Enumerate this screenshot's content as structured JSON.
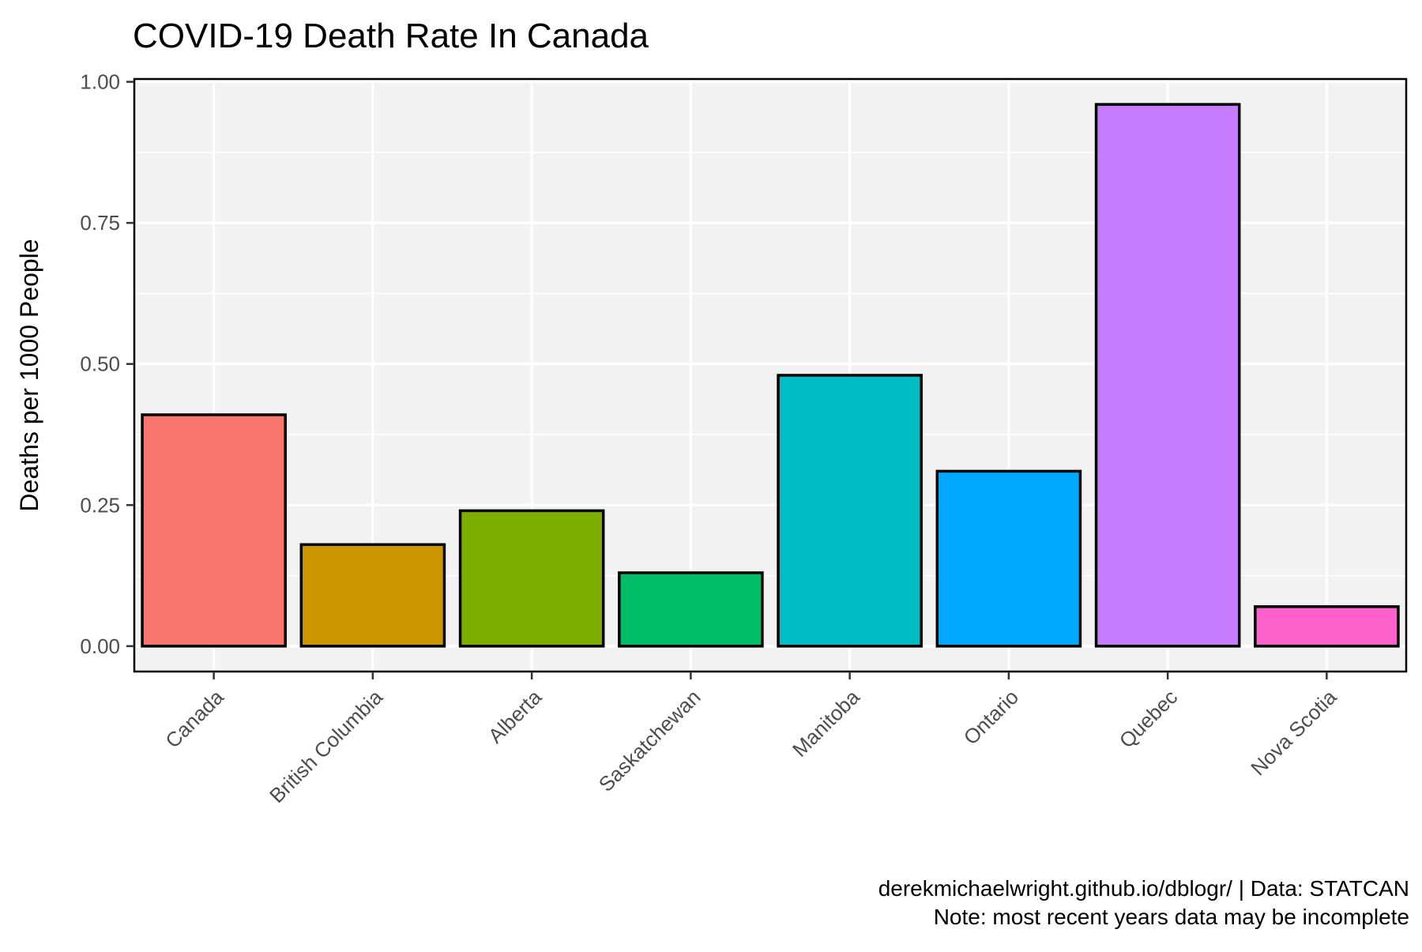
{
  "chart_data": {
    "type": "bar",
    "title": "COVID-19 Death Rate In Canada",
    "xlabel": "",
    "ylabel": "Deaths per 1000 People",
    "categories": [
      "Canada",
      "British Columbia",
      "Alberta",
      "Saskatchewan",
      "Manitoba",
      "Ontario",
      "Quebec",
      "Nova Scotia"
    ],
    "values": [
      0.41,
      0.18,
      0.24,
      0.13,
      0.48,
      0.31,
      0.96,
      0.07
    ],
    "colors": [
      "#F8766D",
      "#CD9600",
      "#7CAE00",
      "#00BE67",
      "#00BFC4",
      "#00A9FF",
      "#C77CFF",
      "#FF61CC"
    ],
    "ylim": [
      -0.045,
      1.005
    ],
    "yticks": [
      0.0,
      0.25,
      0.5,
      0.75,
      1.0
    ],
    "ytick_labels": [
      "0.00",
      "0.25",
      "0.50",
      "0.75",
      "1.00"
    ],
    "grid": true,
    "legend": "none",
    "panel_background": "#F2F2F2",
    "gridline_color": "#FFFFFF",
    "bar_outline_color": "#000000"
  },
  "caption": {
    "line1": "derekmichaelwright.github.io/dblogr/ | Data: STATCAN",
    "line2": "Note: most recent years data may be incomplete"
  }
}
